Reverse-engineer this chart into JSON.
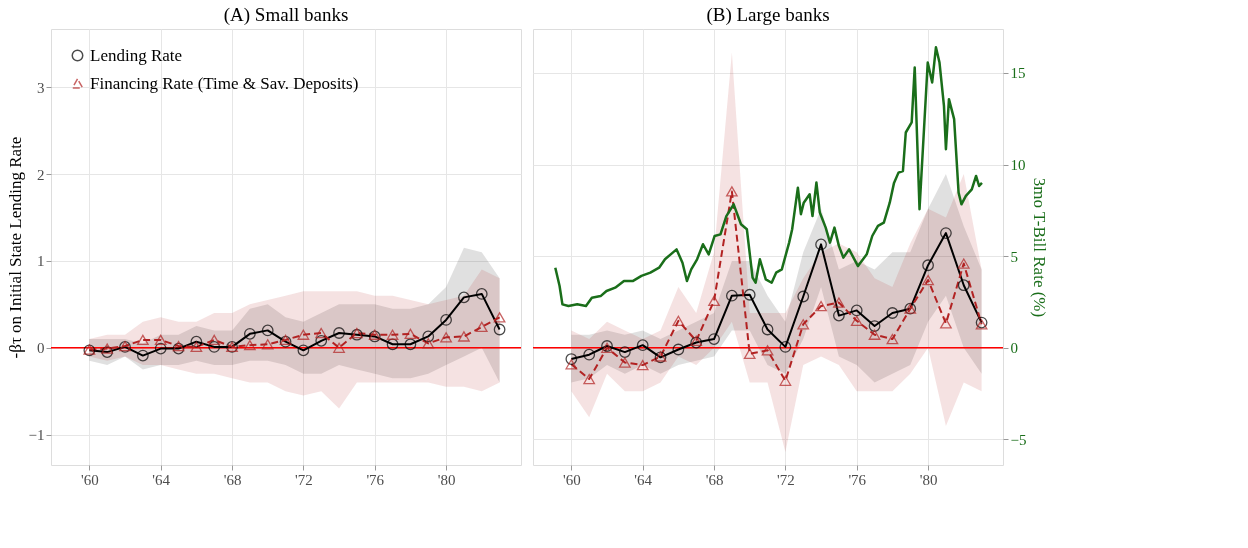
{
  "chart_data": [
    {
      "type": "line",
      "title": "(A) Small banks",
      "ylabel": "-βτ on Initial State Lending Rate",
      "x": [
        1960,
        1961,
        1962,
        1963,
        1964,
        1965,
        1966,
        1967,
        1968,
        1969,
        1970,
        1971,
        1972,
        1973,
        1974,
        1975,
        1976,
        1977,
        1978,
        1979,
        1980,
        1981,
        1982,
        1983
      ],
      "series": [
        {
          "name": "Lending Rate",
          "color": "#000000",
          "marker": "circle",
          "line_style": "solid",
          "values": [
            -0.03,
            -0.05,
            0.01,
            -0.09,
            -0.01,
            -0.01,
            0.07,
            0.01,
            0.01,
            0.16,
            0.2,
            0.07,
            -0.03,
            0.08,
            0.17,
            0.15,
            0.13,
            0.04,
            0.04,
            0.13,
            0.32,
            0.58,
            0.62,
            0.21
          ],
          "lower": [
            -0.15,
            -0.2,
            -0.1,
            -0.25,
            -0.2,
            -0.2,
            -0.15,
            -0.2,
            -0.2,
            -0.15,
            -0.15,
            -0.2,
            -0.3,
            -0.3,
            -0.2,
            -0.25,
            -0.3,
            -0.35,
            -0.35,
            -0.3,
            -0.2,
            -0.1,
            0.0,
            -0.4
          ],
          "upper": [
            0.1,
            0.1,
            0.1,
            0.05,
            0.15,
            0.15,
            0.25,
            0.2,
            0.2,
            0.45,
            0.5,
            0.35,
            0.3,
            0.4,
            0.5,
            0.5,
            0.5,
            0.45,
            0.45,
            0.5,
            0.7,
            1.15,
            1.1,
            0.8
          ]
        },
        {
          "name": "Financing Rate (Time & Sav. Deposits)",
          "color": "#b22222",
          "marker": "triangle",
          "line_style": "dashed",
          "values": [
            -0.02,
            -0.01,
            0.02,
            0.09,
            0.09,
            0.02,
            0.01,
            0.09,
            0.01,
            0.03,
            0.04,
            0.09,
            0.15,
            0.17,
            0.0,
            0.17,
            0.15,
            0.15,
            0.16,
            0.05,
            0.12,
            0.13,
            0.24,
            0.35
          ],
          "lower": [
            -0.1,
            -0.15,
            -0.1,
            -0.2,
            -0.2,
            -0.25,
            -0.3,
            -0.3,
            -0.35,
            -0.4,
            -0.4,
            -0.5,
            -0.55,
            -0.5,
            -0.7,
            -0.4,
            -0.4,
            -0.4,
            -0.4,
            -0.4,
            -0.45,
            -0.45,
            -0.5,
            -0.4
          ],
          "upper": [
            0.1,
            0.15,
            0.15,
            0.3,
            0.35,
            0.3,
            0.3,
            0.4,
            0.4,
            0.5,
            0.55,
            0.6,
            0.65,
            0.65,
            0.65,
            0.65,
            0.6,
            0.6,
            0.55,
            0.5,
            0.55,
            0.6,
            0.9,
            0.8
          ]
        }
      ],
      "xlim": [
        1957.85,
        1984.2
      ],
      "xticks": [
        {
          "value": 1960,
          "label": "'60"
        },
        {
          "value": 1964,
          "label": "'64"
        },
        {
          "value": 1968,
          "label": "'68"
        },
        {
          "value": 1972,
          "label": "'72"
        },
        {
          "value": 1976,
          "label": "'76"
        },
        {
          "value": 1980,
          "label": "'80"
        }
      ],
      "ylim": [
        -1.35,
        3.67
      ],
      "yticks": [
        -1,
        0,
        1,
        2,
        3
      ],
      "ref_lines": [
        {
          "axis": "y",
          "value": 0,
          "color": "#ff0000"
        }
      ],
      "grid": true,
      "legend": "top left"
    },
    {
      "type": "line",
      "title": "(B) Large banks",
      "y2label": "3mo T-Bill Rate (%)",
      "x": [
        1960,
        1961,
        1962,
        1963,
        1964,
        1965,
        1966,
        1967,
        1968,
        1969,
        1970,
        1971,
        1972,
        1973,
        1974,
        1975,
        1976,
        1977,
        1978,
        1979,
        1980,
        1981,
        1982,
        1983
      ],
      "series": [
        {
          "color": "#000000",
          "marker": "circle",
          "line_style": "solid",
          "values": [
            -0.13,
            -0.08,
            0.02,
            -0.05,
            0.03,
            -0.11,
            -0.02,
            0.06,
            0.1,
            0.6,
            0.61,
            0.21,
            0.01,
            0.59,
            1.19,
            0.37,
            0.43,
            0.25,
            0.4,
            0.45,
            0.95,
            1.32,
            0.72,
            0.29
          ],
          "lower": [
            -0.4,
            -0.35,
            -0.2,
            -0.3,
            -0.2,
            -0.3,
            -0.2,
            -0.15,
            -0.1,
            0.2,
            0.2,
            -0.2,
            -0.3,
            0.1,
            0.7,
            -0.1,
            -0.2,
            -0.4,
            -0.3,
            -0.2,
            0.3,
            0.6,
            0.0,
            -0.3
          ],
          "upper": [
            0.15,
            0.15,
            0.2,
            0.15,
            0.2,
            0.1,
            0.2,
            0.3,
            0.4,
            1.0,
            1.0,
            0.6,
            0.3,
            1.1,
            1.6,
            0.9,
            1.0,
            0.9,
            1.1,
            1.1,
            1.6,
            2.0,
            1.4,
            0.9
          ]
        },
        {
          "color": "#b22222",
          "marker": "triangle",
          "line_style": "dashed",
          "values": [
            -0.19,
            -0.36,
            0.0,
            -0.17,
            -0.2,
            -0.1,
            0.31,
            0.08,
            0.54,
            1.8,
            -0.07,
            -0.03,
            -0.38,
            0.27,
            0.48,
            0.52,
            0.31,
            0.15,
            0.1,
            0.45,
            0.78,
            0.28,
            0.97,
            0.27
          ],
          "lower": [
            -0.5,
            -0.8,
            -0.3,
            -0.5,
            -0.5,
            -0.4,
            -0.1,
            -0.2,
            0.0,
            0.3,
            -0.4,
            -0.4,
            -1.2,
            -0.2,
            -0.1,
            -0.2,
            -0.5,
            -0.5,
            -0.5,
            -0.3,
            0.0,
            -0.9,
            -0.4,
            -0.5
          ],
          "upper": [
            0.2,
            0.1,
            0.3,
            0.2,
            0.1,
            0.2,
            0.7,
            0.4,
            1.1,
            3.4,
            0.4,
            0.4,
            0.4,
            0.8,
            1.1,
            1.2,
            1.1,
            0.8,
            0.7,
            1.2,
            1.6,
            1.5,
            2.0,
            0.9
          ]
        },
        {
          "color": "#1a6e1a",
          "axis": "y2",
          "marker": "none",
          "line_style": "solid",
          "x": [
            1959.1,
            1959.34,
            1959.5,
            1959.84,
            1960.33,
            1960.82,
            1961.15,
            1961.64,
            1961.97,
            1962.46,
            1962.95,
            1963.44,
            1963.93,
            1964.43,
            1964.92,
            1965.25,
            1965.57,
            1965.9,
            1966.23,
            1966.48,
            1966.72,
            1967.05,
            1967.38,
            1967.7,
            1968.03,
            1968.36,
            1968.69,
            1969.1,
            1969.51,
            1969.84,
            1970.16,
            1970.33,
            1970.57,
            1970.9,
            1971.23,
            1971.48,
            1971.8,
            1972.21,
            1972.38,
            1972.7,
            1972.87,
            1973.03,
            1973.36,
            1973.52,
            1973.74,
            1973.93,
            1974.26,
            1974.5,
            1974.75,
            1975.0,
            1975.25,
            1975.57,
            1976.07,
            1976.56,
            1976.87,
            1977.19,
            1977.52,
            1977.85,
            1978.09,
            1978.34,
            1978.59,
            1978.75,
            1979.08,
            1979.25,
            1979.52,
            1979.98,
            1980.23,
            1980.44,
            1980.64,
            1980.89,
            1981.0,
            1981.17,
            1981.46,
            1981.71,
            1981.87,
            1982.12,
            1982.45,
            1982.69,
            1982.86,
            1983.02
          ],
          "values": [
            4.37,
            3.37,
            2.37,
            2.28,
            2.37,
            2.28,
            2.73,
            2.82,
            3.1,
            3.28,
            3.64,
            3.64,
            3.92,
            4.1,
            4.37,
            4.83,
            5.1,
            5.37,
            4.64,
            3.64,
            4.28,
            4.83,
            5.65,
            5.1,
            6.1,
            6.19,
            7.19,
            7.83,
            6.74,
            6.47,
            3.83,
            3.55,
            4.83,
            3.73,
            3.55,
            4.1,
            4.28,
            5.74,
            6.47,
            8.74,
            7.29,
            7.92,
            8.38,
            7.19,
            9.02,
            7.38,
            6.56,
            5.74,
            6.56,
            5.56,
            4.92,
            5.37,
            4.46,
            5.1,
            6.1,
            6.65,
            6.83,
            7.92,
            9.0,
            9.56,
            9.65,
            11.75,
            12.3,
            15.3,
            7.56,
            15.57,
            14.48,
            16.4,
            15.57,
            13.2,
            10.84,
            13.57,
            12.48,
            8.47,
            7.83,
            8.29,
            8.65,
            9.38,
            8.83,
            9.0
          ]
        }
      ],
      "xlim": [
        1957.85,
        1984.2
      ],
      "xticks": [
        {
          "value": 1960,
          "label": "'60"
        },
        {
          "value": 1964,
          "label": "'64"
        },
        {
          "value": 1968,
          "label": "'68"
        },
        {
          "value": 1972,
          "label": "'72"
        },
        {
          "value": 1976,
          "label": "'76"
        },
        {
          "value": 1980,
          "label": "'80"
        }
      ],
      "ylim": [
        -1.35,
        3.67
      ],
      "y2lim": [
        -6.4,
        17.4
      ],
      "y2ticks": [
        -5,
        0,
        5,
        10,
        15
      ],
      "ref_lines": [
        {
          "axis": "y",
          "value": 0,
          "color": "#ff0000"
        }
      ],
      "grid": true
    }
  ]
}
